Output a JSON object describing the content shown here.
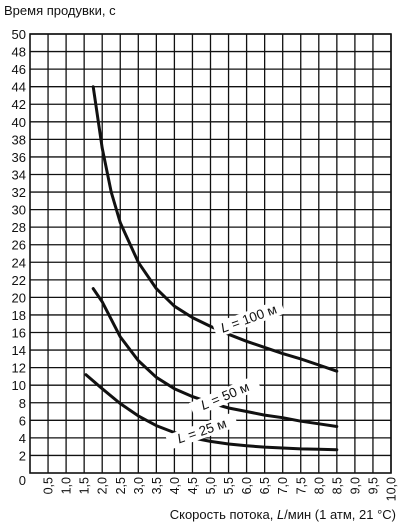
{
  "chart_data": {
    "type": "line",
    "ylabel": "Время продувки, с",
    "xlabel_prefix": "Скорость потока, ",
    "xlabel_var": "L",
    "xlabel_suffix": "/мин (1 атм, 21 °C)",
    "xlim": [
      0,
      10
    ],
    "ylim": [
      0,
      50
    ],
    "x_ticks": [
      "0,5",
      "1,0",
      "1,5",
      "2,0",
      "2,5",
      "3,0",
      "3,5",
      "4,0",
      "4,5",
      "5,0",
      "5,5",
      "6,0",
      "6,5",
      "7,0",
      "7,5",
      "8,0",
      "8,5",
      "9,0",
      "9,5",
      "10,0"
    ],
    "x_tick_values": [
      0.5,
      1.0,
      1.5,
      2.0,
      2.5,
      3.0,
      3.5,
      4.0,
      4.5,
      5.0,
      5.5,
      6.0,
      6.5,
      7.0,
      7.5,
      8.0,
      8.5,
      9.0,
      9.5,
      10.0
    ],
    "x_zero_label": "0",
    "y_ticks": [
      "2",
      "4",
      "6",
      "8",
      "10",
      "12",
      "14",
      "16",
      "18",
      "20",
      "22",
      "24",
      "26",
      "28",
      "30",
      "32",
      "34",
      "36",
      "38",
      "40",
      "42",
      "44",
      "46",
      "48",
      "50"
    ],
    "y_tick_values": [
      2,
      4,
      6,
      8,
      10,
      12,
      14,
      16,
      18,
      20,
      22,
      24,
      26,
      28,
      30,
      32,
      34,
      36,
      38,
      40,
      42,
      44,
      46,
      48,
      50
    ],
    "grid": true,
    "series": [
      {
        "name": "L = 100 м",
        "x": [
          1.75,
          2.0,
          2.25,
          2.5,
          3.0,
          3.5,
          4.0,
          4.5,
          5.0,
          5.5,
          6.0,
          6.5,
          7.0,
          7.5,
          8.0,
          8.5
        ],
        "y": [
          44.0,
          37.0,
          32.0,
          28.5,
          24.0,
          21.0,
          19.0,
          17.7,
          16.7,
          15.8,
          15.0,
          14.3,
          13.6,
          13.0,
          12.3,
          11.6
        ]
      },
      {
        "name": "L = 50 м",
        "x": [
          1.75,
          2.0,
          2.5,
          3.0,
          3.5,
          4.0,
          4.5,
          5.0,
          5.5,
          6.0,
          6.5,
          7.0,
          7.5,
          8.0,
          8.5
        ],
        "y": [
          21.0,
          19.5,
          15.5,
          12.8,
          10.9,
          9.6,
          8.7,
          8.0,
          7.4,
          7.0,
          6.6,
          6.3,
          5.9,
          5.6,
          5.3
        ]
      },
      {
        "name": "L = 25 м",
        "x": [
          1.55,
          2.0,
          2.5,
          3.0,
          3.5,
          4.0,
          4.5,
          5.0,
          5.5,
          6.0,
          6.5,
          7.0,
          7.5,
          8.0,
          8.5
        ],
        "y": [
          11.2,
          9.6,
          7.9,
          6.5,
          5.4,
          4.6,
          4.0,
          3.6,
          3.3,
          3.1,
          2.95,
          2.85,
          2.75,
          2.7,
          2.65
        ]
      }
    ]
  }
}
